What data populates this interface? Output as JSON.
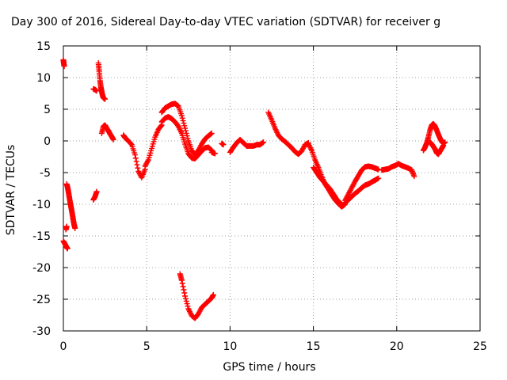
{
  "chart_data": {
    "type": "scatter",
    "title": "Day 300 of 2016, Sidereal Day-to-day VTEC variation (SDTVAR) for receiver g",
    "xlabel": "GPS time / hours",
    "ylabel": "SDTVAR / TECUs",
    "xlim": [
      0,
      25
    ],
    "ylim": [
      -30,
      15
    ],
    "xticks": [
      "0",
      "5",
      "10",
      "15",
      "20",
      "25"
    ],
    "yticks": [
      "15",
      "10",
      "5",
      "0",
      "-5",
      "-10",
      "-15",
      "-20",
      "-25",
      "-30"
    ],
    "grid": true,
    "legend": "none",
    "marker": "plus",
    "color": "#ff0000",
    "segments": [
      {
        "x": [
          0.0,
          0.1,
          0.2,
          0.25
        ],
        "y": [
          -15.8,
          -16.3,
          -16.8,
          -17.0
        ]
      },
      {
        "x": [
          0.0,
          0.02,
          0.05
        ],
        "y": [
          12.8,
          12.3,
          11.8
        ]
      },
      {
        "x": [
          0.2,
          0.25,
          0.3,
          0.35,
          0.4,
          0.45,
          0.5,
          0.55,
          0.6,
          0.65,
          0.7
        ],
        "y": [
          -6.8,
          -7.3,
          -8.0,
          -8.8,
          -9.6,
          -10.3,
          -11.0,
          -11.8,
          -12.6,
          -13.3,
          -13.8
        ]
      },
      {
        "x": [
          0.15,
          0.2
        ],
        "y": [
          -14.0,
          -13.5
        ]
      },
      {
        "x": [
          1.8,
          1.9,
          2.0
        ],
        "y": [
          -9.3,
          -8.8,
          -8.0
        ]
      },
      {
        "x": [
          1.8,
          1.9,
          2.0
        ],
        "y": [
          8.2,
          8.1,
          7.9
        ]
      },
      {
        "x": [
          2.1,
          2.15,
          2.2,
          2.25,
          2.3,
          2.35,
          2.4,
          2.5
        ],
        "y": [
          12.3,
          11.0,
          9.5,
          8.5,
          7.8,
          7.2,
          6.8,
          6.6
        ]
      },
      {
        "x": [
          2.3,
          2.4,
          2.5,
          2.6,
          2.7,
          2.8,
          2.9,
          3.0
        ],
        "y": [
          1.2,
          2.3,
          2.5,
          2.0,
          1.6,
          1.1,
          0.7,
          0.2
        ]
      },
      {
        "x": [
          3.6,
          3.7,
          3.9,
          4.1,
          4.3,
          4.5,
          4.7,
          4.9
        ],
        "y": [
          0.9,
          0.5,
          0.0,
          -0.6,
          -2.2,
          -4.8,
          -5.8,
          -4.5
        ]
      },
      {
        "x": [
          4.9,
          5.1,
          5.3,
          5.5,
          5.7,
          5.9
        ],
        "y": [
          -4.0,
          -3.0,
          -1.2,
          0.6,
          1.8,
          2.5
        ]
      },
      {
        "x": [
          5.9,
          6.1,
          6.3,
          6.5,
          6.7,
          6.9,
          7.1,
          7.3,
          7.5,
          7.7,
          7.9,
          8.1,
          8.3,
          8.5,
          8.7,
          8.9
        ],
        "y": [
          4.5,
          5.2,
          5.5,
          5.8,
          5.9,
          5.5,
          4.0,
          2.0,
          0.0,
          -1.5,
          -2.2,
          -1.5,
          -0.5,
          0.3,
          0.8,
          1.2
        ]
      },
      {
        "x": [
          5.9,
          6.1,
          6.3,
          6.5,
          6.7,
          6.9,
          7.1,
          7.3,
          7.5,
          7.7,
          7.9,
          8.1,
          8.3,
          8.5,
          8.7,
          8.9
        ],
        "y": [
          3.0,
          3.6,
          3.8,
          3.5,
          3.0,
          2.3,
          1.2,
          -0.5,
          -2.0,
          -2.7,
          -2.8,
          -2.2,
          -1.6,
          -1.1,
          -1.0,
          -1.5
        ]
      },
      {
        "x": [
          8.9,
          9.1
        ],
        "y": [
          -1.8,
          -2.0
        ]
      },
      {
        "x": [
          9.5,
          9.6
        ],
        "y": [
          -0.4,
          -0.6
        ]
      },
      {
        "x": [
          7.0,
          7.1,
          7.3,
          7.5,
          7.7,
          7.9,
          8.1,
          8.3,
          8.5,
          8.7,
          8.9,
          9.0
        ],
        "y": [
          -21.0,
          -22.0,
          -24.5,
          -26.5,
          -27.6,
          -28.0,
          -27.3,
          -26.3,
          -25.8,
          -25.3,
          -24.8,
          -24.3
        ]
      },
      {
        "x": [
          10.0,
          10.2,
          10.4,
          10.6,
          10.8,
          11.0,
          11.2,
          11.4,
          11.6,
          11.8,
          12.0
        ],
        "y": [
          -1.8,
          -1.0,
          -0.3,
          0.2,
          -0.3,
          -0.8,
          -0.8,
          -0.8,
          -0.6,
          -0.6,
          -0.2
        ]
      },
      {
        "x": [
          12.3,
          12.5,
          12.7,
          12.9,
          13.1,
          13.3,
          13.5,
          13.7,
          13.9,
          14.1,
          14.3,
          14.5,
          14.7
        ],
        "y": [
          4.5,
          3.3,
          2.0,
          0.9,
          0.3,
          -0.1,
          -0.6,
          -1.1,
          -1.7,
          -2.1,
          -1.6,
          -0.6,
          -0.3
        ]
      },
      {
        "x": [
          14.7,
          14.9,
          15.1,
          15.3,
          15.5,
          15.7,
          15.9,
          16.1,
          16.3,
          16.5,
          16.7,
          16.9
        ],
        "y": [
          -0.5,
          -1.5,
          -3.0,
          -4.2,
          -5.6,
          -6.8,
          -7.6,
          -8.5,
          -9.3,
          -9.9,
          -10.4,
          -10.0
        ]
      },
      {
        "x": [
          15.0,
          15.2,
          15.4,
          15.6,
          15.8,
          16.0,
          16.2,
          16.4,
          16.6,
          16.8
        ],
        "y": [
          -4.2,
          -5.0,
          -5.8,
          -6.4,
          -7.0,
          -7.6,
          -8.4,
          -9.2,
          -9.8,
          -10.2
        ]
      },
      {
        "x": [
          16.9,
          17.1,
          17.3,
          17.5,
          17.7,
          17.9,
          18.1,
          18.3,
          18.5,
          18.7,
          18.9
        ],
        "y": [
          -9.4,
          -8.4,
          -7.4,
          -6.4,
          -5.5,
          -4.6,
          -4.1,
          -4.0,
          -4.1,
          -4.3,
          -4.5
        ]
      },
      {
        "x": [
          16.9,
          17.1,
          17.3,
          17.5,
          17.7,
          17.9,
          18.1,
          18.3,
          18.5,
          18.7,
          18.9
        ],
        "y": [
          -9.8,
          -9.3,
          -8.8,
          -8.3,
          -7.9,
          -7.4,
          -7.0,
          -6.8,
          -6.5,
          -6.2,
          -5.9
        ]
      },
      {
        "x": [
          19.1,
          19.3,
          19.5,
          19.7,
          19.9,
          20.1,
          20.3,
          20.5,
          20.7,
          20.9,
          21.05
        ],
        "y": [
          -4.6,
          -4.5,
          -4.4,
          -4.1,
          -3.9,
          -3.6,
          -3.9,
          -4.1,
          -4.3,
          -4.6,
          -5.6
        ]
      },
      {
        "x": [
          21.6,
          21.7,
          21.8,
          21.9,
          22.0,
          22.1,
          22.2,
          22.3,
          22.4,
          22.5,
          22.6,
          22.7,
          22.8,
          22.9
        ],
        "y": [
          -1.5,
          -1.0,
          -0.3,
          0.6,
          1.7,
          2.5,
          2.7,
          2.3,
          1.7,
          1.0,
          0.4,
          -0.1,
          -0.4,
          -0.2
        ]
      },
      {
        "x": [
          22.0,
          22.1,
          22.2,
          22.3,
          22.4,
          22.5,
          22.6,
          22.7,
          22.8
        ],
        "y": [
          -0.2,
          -0.5,
          -0.9,
          -1.3,
          -1.9,
          -2.1,
          -1.6,
          -1.2,
          -0.7
        ]
      }
    ]
  }
}
